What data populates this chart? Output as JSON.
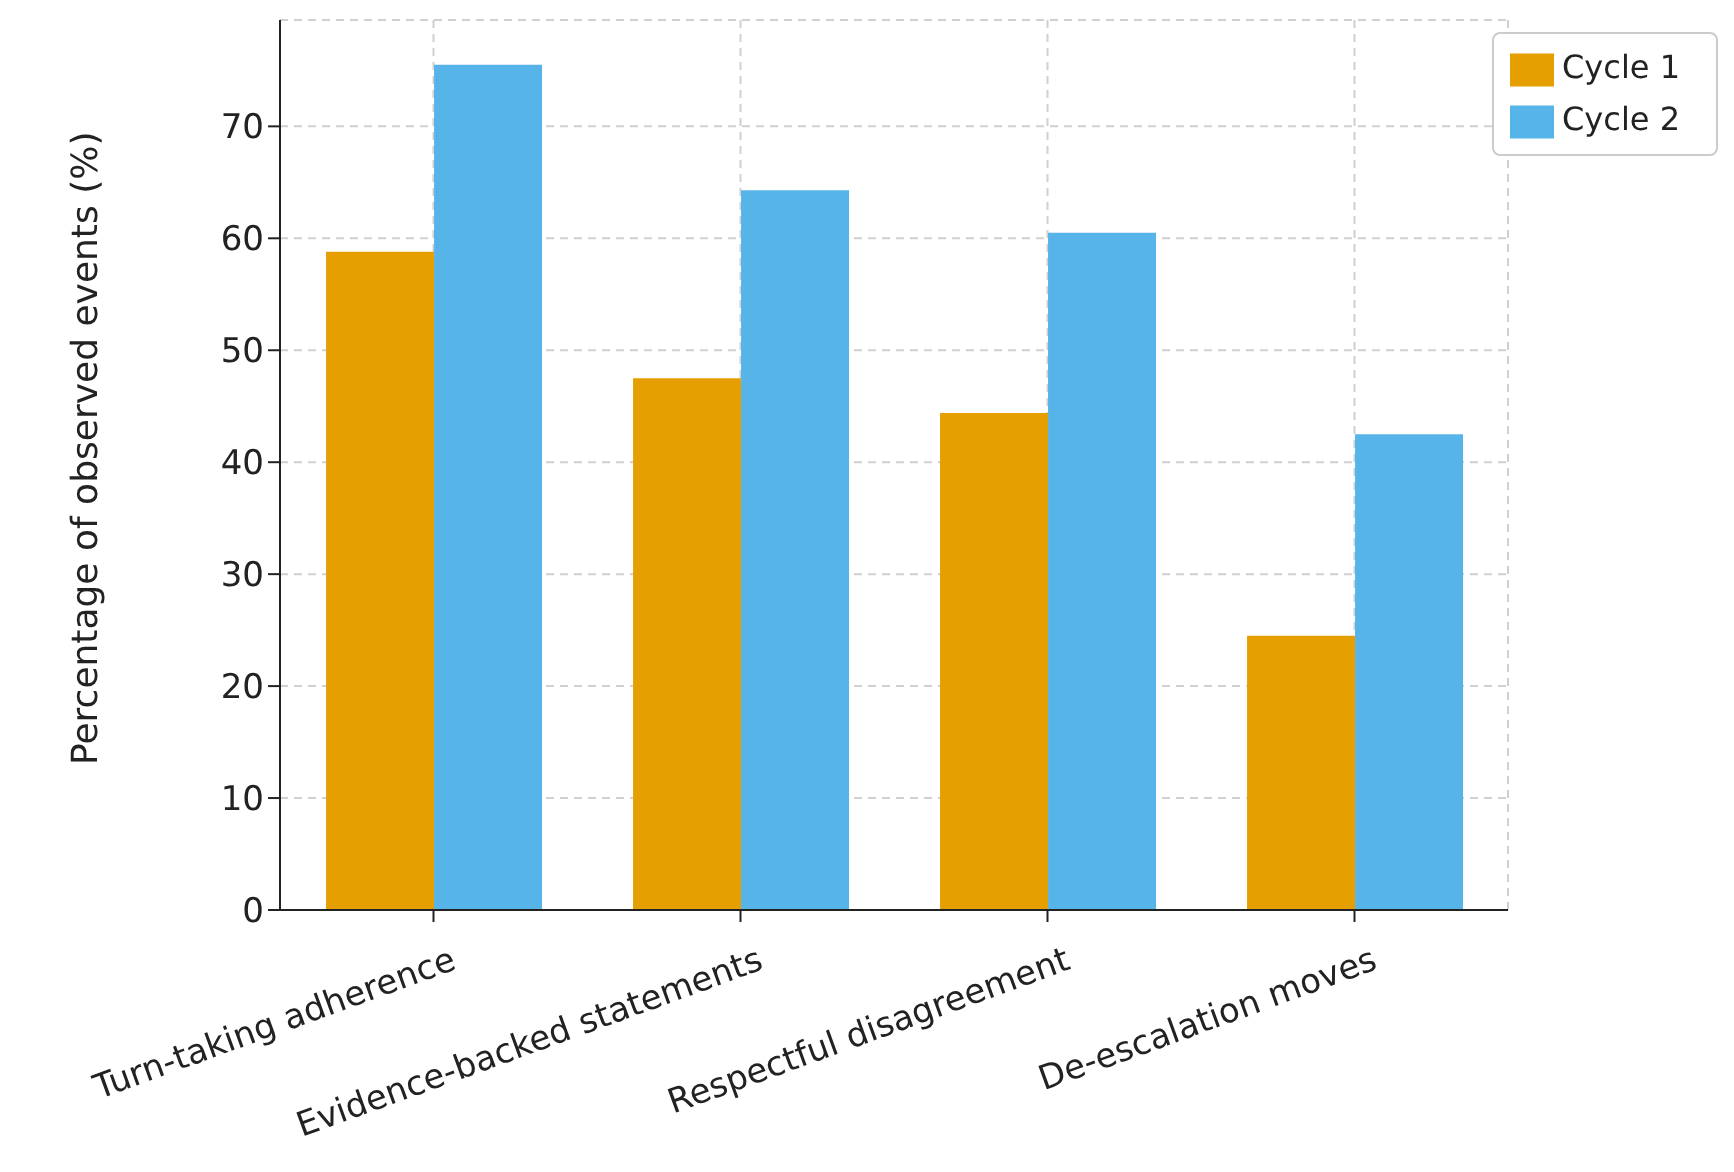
{
  "chart_data": {
    "type": "bar",
    "ylabel": "Percentage of observed events (%)",
    "categories": [
      "Turn-taking adherence",
      "Evidence-backed statements",
      "Respectful disagreement",
      "De-escalation moves"
    ],
    "series": [
      {
        "name": "Cycle 1",
        "color": "#e69f00",
        "values": [
          58.8,
          47.5,
          44.4,
          24.5
        ]
      },
      {
        "name": "Cycle 2",
        "color": "#56b4e9",
        "values": [
          75.5,
          64.3,
          60.5,
          42.5
        ]
      }
    ],
    "ylim": [
      0,
      79.5
    ],
    "yticks": [
      0,
      10,
      20,
      30,
      40,
      50,
      60,
      70
    ],
    "grid": true,
    "legend": "top right"
  }
}
